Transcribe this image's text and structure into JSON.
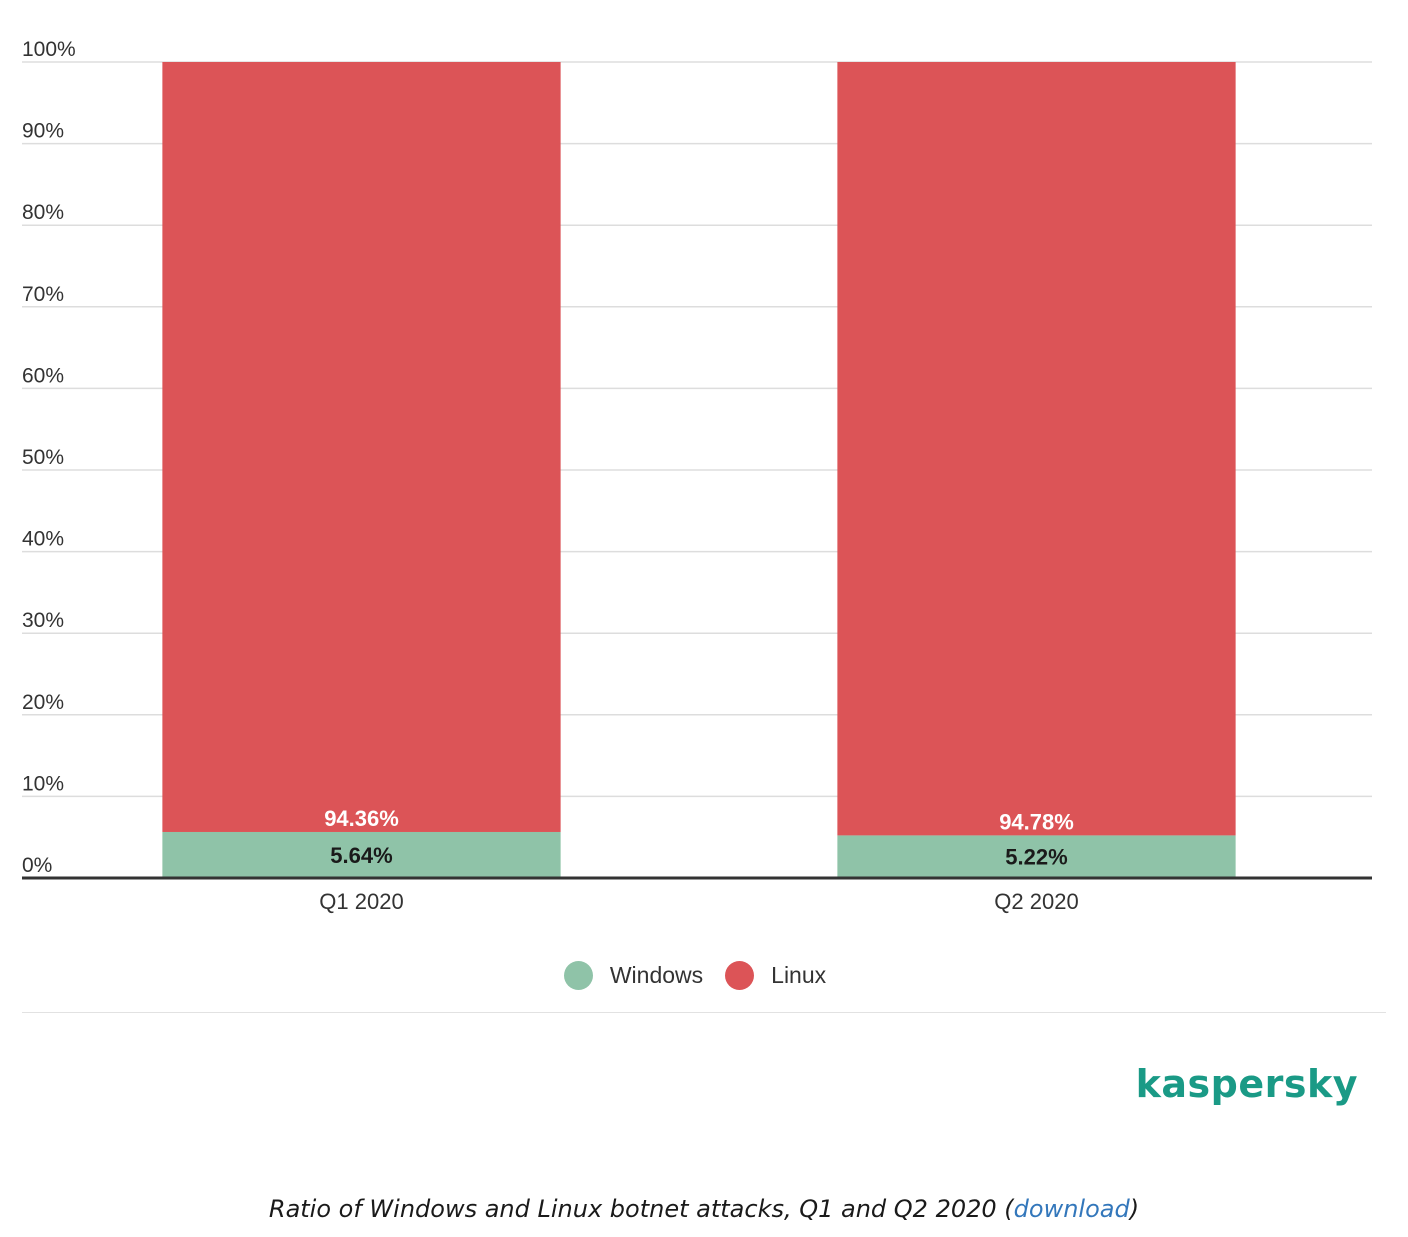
{
  "chart_data": {
    "type": "bar",
    "stacked": true,
    "categories": [
      "Q1 2020",
      "Q2 2020"
    ],
    "series": [
      {
        "name": "Windows",
        "values": [
          5.64,
          5.22
        ],
        "labels": [
          "5.64%",
          "5.22%"
        ],
        "color": "#8fc3a8",
        "label_color": "#1a1a1a"
      },
      {
        "name": "Linux",
        "values": [
          94.36,
          94.78
        ],
        "labels": [
          "94.36%",
          "94.78%"
        ],
        "color": "#dc5457",
        "label_color": "#ffffff"
      }
    ],
    "ylim": [
      0,
      100
    ],
    "yticks": [
      0,
      10,
      20,
      30,
      40,
      50,
      60,
      70,
      80,
      90,
      100
    ],
    "ytick_labels": [
      "0%",
      "10%",
      "20%",
      "30%",
      "40%",
      "50%",
      "60%",
      "70%",
      "80%",
      "90%",
      "100%"
    ],
    "grid": true,
    "legend_position": "bottom-center",
    "xlabel": "",
    "ylabel": ""
  },
  "legend": {
    "items": [
      {
        "label": "Windows",
        "color": "#8fc3a8"
      },
      {
        "label": "Linux",
        "color": "#dc5457"
      }
    ]
  },
  "logo": {
    "text": "kaspersky",
    "color": "#1a9a86"
  },
  "caption": {
    "text": "Ratio of Windows and Linux botnet attacks, Q1 and Q2 2020 (",
    "link": "download",
    "suffix": ")",
    "link_color": "#3377bb"
  }
}
